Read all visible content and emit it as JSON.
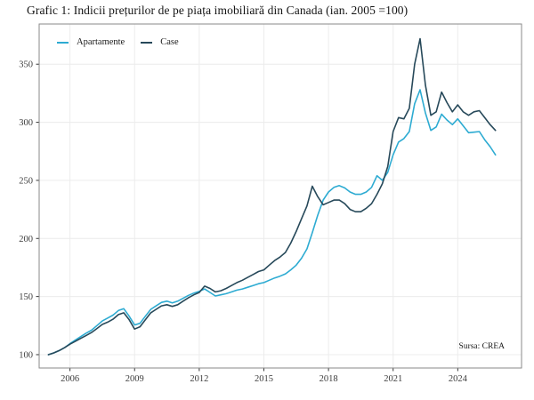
{
  "title": "Grafic 1: Indicii prețurilor de pe piața imobiliară din Canada (ian. 2005 =100)",
  "source": "Sursa: CREA",
  "legend": [
    {
      "label": "Apartamente",
      "color": "#2dabd2"
    },
    {
      "label": "Case",
      "color": "#27495a"
    }
  ],
  "colors": {
    "grid": "#ececec",
    "panel_border": "#8a8a8a",
    "axis_text": "#3c3c3c",
    "tick_mark": "#333333",
    "background": "#ffffff"
  },
  "chart_data": {
    "type": "line",
    "title": "Grafic 1: Indicii prețurilor de pe piața imobiliară din Canada (ian. 2005 =100)",
    "xlabel": "",
    "ylabel": "",
    "annotation": "Sursa: CREA",
    "grid": true,
    "legend_position": "inside-top-left",
    "x_start": 2005.0,
    "x_step": 0.25,
    "x_ticks": [
      2006,
      2009,
      2012,
      2015,
      2018,
      2021,
      2024
    ],
    "y_ticks": [
      100,
      150,
      200,
      250,
      300,
      350
    ],
    "xlim": [
      2004.57,
      2026.96
    ],
    "ylim": [
      88.5,
      384.6
    ],
    "series": [
      {
        "name": "Apartamente",
        "color": "#2dabd2",
        "values": [
          100,
          101.5,
          103.5,
          106,
          109.5,
          112.5,
          115.5,
          118.5,
          121,
          125,
          129,
          131.5,
          134,
          138,
          139.5,
          133,
          125.5,
          127,
          133,
          139,
          142,
          145,
          146,
          144.5,
          146,
          148.5,
          151,
          153,
          154.5,
          156.5,
          153.5,
          150.5,
          151.5,
          152.5,
          154,
          155.5,
          156.5,
          158,
          159.5,
          161,
          162,
          164,
          166,
          167.5,
          169.5,
          173,
          177,
          183,
          191,
          205,
          220,
          233,
          240,
          244,
          245.5,
          243.5,
          240,
          238,
          238,
          240,
          244,
          254,
          250,
          257,
          272,
          283,
          286,
          292,
          316,
          328,
          308,
          293,
          296,
          307,
          302,
          298,
          303,
          297,
          291,
          291.5,
          292,
          285,
          279,
          272
        ]
      },
      {
        "name": "Case",
        "color": "#27495a",
        "values": [
          100,
          101.5,
          103.5,
          106,
          109,
          111.5,
          114,
          116.5,
          119,
          122.5,
          126,
          128,
          130.5,
          134.5,
          136,
          130,
          122,
          124,
          130,
          136,
          139,
          142,
          143,
          141.5,
          143,
          146,
          149,
          151.5,
          153.5,
          159,
          157,
          154,
          155,
          157,
          159.5,
          162,
          164,
          166.5,
          169,
          171.5,
          173,
          177,
          181,
          184,
          188,
          196,
          206,
          217,
          228,
          245,
          236,
          229,
          231,
          233,
          233,
          230,
          225,
          223,
          223,
          226,
          230,
          238,
          247,
          262,
          292,
          304,
          303,
          312,
          350,
          372,
          332,
          306,
          309,
          326,
          317,
          309,
          315,
          309,
          306,
          309,
          310,
          304,
          298,
          293
        ]
      }
    ]
  }
}
